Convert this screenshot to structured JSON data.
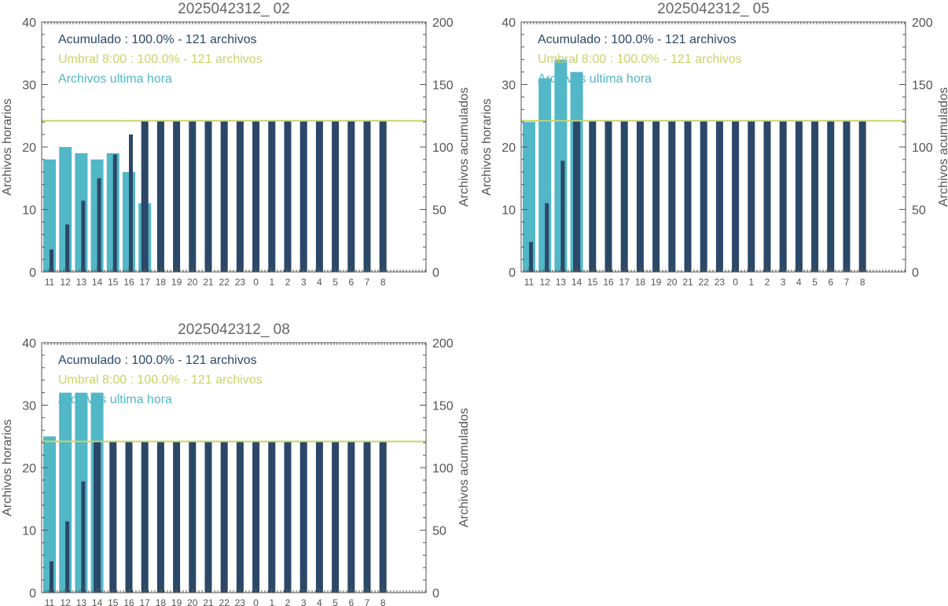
{
  "colors": {
    "hourly": "#52b7c7",
    "cumulative": "#2b4868",
    "threshold": "#c8d46a",
    "axis": "#555555",
    "title": "#666666"
  },
  "chart_data": [
    {
      "type": "bar",
      "title": "2025042312_ 02",
      "ylabel": "Archivos horarios",
      "y2label": "Archivos acumulados",
      "ylim": [
        0,
        40
      ],
      "y2lim": [
        0,
        200
      ],
      "yticks": [
        "0",
        "10",
        "20",
        "30",
        "40"
      ],
      "y2ticks": [
        "0",
        "50",
        "100",
        "150",
        "200"
      ],
      "categories": [
        "11",
        "12",
        "13",
        "14",
        "15",
        "16",
        "17",
        "18",
        "19",
        "20",
        "21",
        "22",
        "23",
        "0",
        "1",
        "2",
        "3",
        "4",
        "5",
        "6",
        "7",
        "8"
      ],
      "legend": [
        "Acumulado : 100.0% - 121 archivos",
        "Umbral 8:00 : 100.0% - 121 archivos",
        "Archivos ultima hora"
      ],
      "threshold": 121,
      "series": [
        {
          "name": "Archivos ultima hora",
          "axis": "left",
          "values": [
            18,
            20,
            19,
            18,
            19,
            16,
            11,
            0,
            0,
            0,
            0,
            0,
            0,
            0,
            0,
            0,
            0,
            0,
            0,
            0,
            0,
            0
          ]
        },
        {
          "name": "Acumulado",
          "axis": "right",
          "values": [
            18,
            38,
            57,
            75,
            94,
            110,
            121,
            121,
            121,
            121,
            121,
            121,
            121,
            121,
            121,
            121,
            121,
            121,
            121,
            121,
            121,
            121
          ]
        }
      ]
    },
    {
      "type": "bar",
      "title": "2025042312_ 05",
      "ylabel": "Archivos horarios",
      "y2label": "Archivos acumulados",
      "ylim": [
        0,
        40
      ],
      "y2lim": [
        0,
        200
      ],
      "yticks": [
        "0",
        "10",
        "20",
        "30",
        "40"
      ],
      "y2ticks": [
        "0",
        "50",
        "100",
        "150",
        "200"
      ],
      "categories": [
        "11",
        "12",
        "13",
        "14",
        "15",
        "16",
        "17",
        "18",
        "19",
        "20",
        "21",
        "22",
        "23",
        "0",
        "1",
        "2",
        "3",
        "4",
        "5",
        "6",
        "7",
        "8"
      ],
      "legend": [
        "Acumulado : 100.0% - 121 archivos",
        "Umbral 8:00 : 100.0% - 121 archivos",
        "Archivos ultima hora"
      ],
      "threshold": 121,
      "series": [
        {
          "name": "Archivos ultima hora",
          "axis": "left",
          "values": [
            24,
            31,
            34,
            32,
            0,
            0,
            0,
            0,
            0,
            0,
            0,
            0,
            0,
            0,
            0,
            0,
            0,
            0,
            0,
            0,
            0,
            0
          ]
        },
        {
          "name": "Acumulado",
          "axis": "right",
          "values": [
            24,
            55,
            89,
            121,
            121,
            121,
            121,
            121,
            121,
            121,
            121,
            121,
            121,
            121,
            121,
            121,
            121,
            121,
            121,
            121,
            121,
            121
          ]
        }
      ]
    },
    {
      "type": "bar",
      "title": "2025042312_ 08",
      "ylabel": "Archivos horarios",
      "y2label": "Archivos acumulados",
      "ylim": [
        0,
        40
      ],
      "y2lim": [
        0,
        200
      ],
      "yticks": [
        "0",
        "10",
        "20",
        "30",
        "40"
      ],
      "y2ticks": [
        "0",
        "50",
        "100",
        "150",
        "200"
      ],
      "categories": [
        "11",
        "12",
        "13",
        "14",
        "15",
        "16",
        "17",
        "18",
        "19",
        "20",
        "21",
        "22",
        "23",
        "0",
        "1",
        "2",
        "3",
        "4",
        "5",
        "6",
        "7",
        "8"
      ],
      "legend": [
        "Acumulado : 100.0% - 121 archivos",
        "Umbral 8:00 : 100.0% - 121 archivos",
        "Archivos ultima hora"
      ],
      "threshold": 121,
      "series": [
        {
          "name": "Archivos ultima hora",
          "axis": "left",
          "values": [
            25,
            32,
            32,
            32,
            0,
            0,
            0,
            0,
            0,
            0,
            0,
            0,
            0,
            0,
            0,
            0,
            0,
            0,
            0,
            0,
            0,
            0
          ]
        },
        {
          "name": "Acumulado",
          "axis": "right",
          "values": [
            25,
            57,
            89,
            121,
            121,
            121,
            121,
            121,
            121,
            121,
            121,
            121,
            121,
            121,
            121,
            121,
            121,
            121,
            121,
            121,
            121,
            121
          ]
        }
      ]
    }
  ]
}
